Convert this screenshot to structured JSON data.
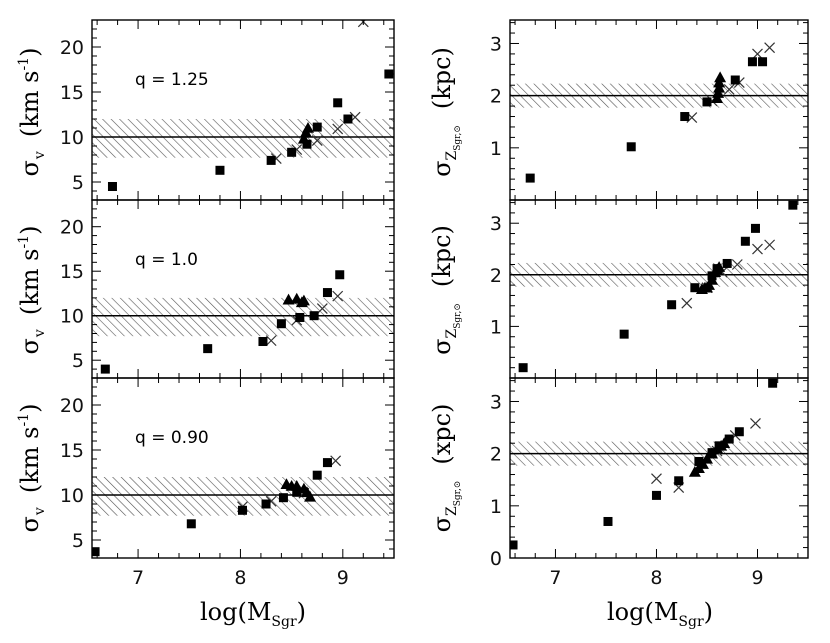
{
  "chart_data": {
    "type": "scatter",
    "xlabel_main": "log(M",
    "xlabel_sub": "Sgr",
    "xlabel_close": ")",
    "x_ticks": [
      "7",
      "8",
      "9"
    ],
    "xlim": [
      6.55,
      9.5
    ],
    "left_column": {
      "ylabel_sym": "σ",
      "ylabel_sub": "v",
      "ylabel_units": "(km s",
      "ylabel_exp": "-1",
      "ylabel_close": ")",
      "ylim": [
        3,
        23
      ],
      "y_ticks": [
        "5",
        "10",
        "15",
        "20"
      ],
      "band": {
        "center": 10,
        "low": 7.7,
        "high": 12.0
      }
    },
    "right_column": {
      "ylabel_sym": "σ",
      "ylabel_sub": "Z",
      "ylabel_subsub": "Sgr,⊙",
      "ylim": [
        0,
        3.45
      ],
      "band": {
        "center": 2.0,
        "low": 1.77,
        "high": 2.23
      },
      "panels_y_ticks": [
        [
          "1",
          "2",
          "3"
        ],
        [
          "1",
          "2",
          "3"
        ],
        [
          "0",
          "1",
          "2",
          "3"
        ]
      ],
      "panels_units": [
        "(kpc)",
        "(kpc)",
        "(xpc)"
      ]
    },
    "panels": [
      {
        "q_label": "q = 1.25",
        "left": {
          "squares": [
            [
              6.75,
              4.5
            ],
            [
              7.8,
              6.3
            ],
            [
              8.3,
              7.4
            ],
            [
              8.5,
              8.3
            ],
            [
              8.65,
              9.2
            ],
            [
              8.75,
              11.1
            ],
            [
              8.95,
              13.8
            ],
            [
              9.05,
              12.0
            ],
            [
              9.45,
              17.0
            ]
          ],
          "triangles": [
            [
              8.62,
              9.8
            ],
            [
              8.64,
              10.5
            ],
            [
              8.66,
              11.0
            ]
          ],
          "crosses": [
            [
              8.35,
              7.6
            ],
            [
              8.55,
              8.6
            ],
            [
              8.75,
              9.6
            ],
            [
              8.95,
              10.9
            ],
            [
              9.12,
              12.2
            ],
            [
              9.2,
              22.8
            ]
          ]
        },
        "right": {
          "squares": [
            [
              6.75,
              0.42
            ],
            [
              7.75,
              1.02
            ],
            [
              8.28,
              1.6
            ],
            [
              8.5,
              1.88
            ],
            [
              8.78,
              2.3
            ],
            [
              8.95,
              2.65
            ],
            [
              9.05,
              2.65
            ]
          ],
          "triangles": [
            [
              8.6,
              1.95
            ],
            [
              8.61,
              2.05
            ],
            [
              8.62,
              2.15
            ],
            [
              8.62,
              2.25
            ],
            [
              8.63,
              2.35
            ]
          ],
          "crosses": [
            [
              8.35,
              1.58
            ],
            [
              8.55,
              1.9
            ],
            [
              8.72,
              2.12
            ],
            [
              8.82,
              2.25
            ],
            [
              9.0,
              2.8
            ],
            [
              9.12,
              2.92
            ]
          ]
        }
      },
      {
        "q_label": "q = 1.0",
        "left": {
          "squares": [
            [
              6.68,
              4.0
            ],
            [
              7.68,
              6.3
            ],
            [
              8.22,
              7.1
            ],
            [
              8.4,
              9.1
            ],
            [
              8.58,
              9.8
            ],
            [
              8.72,
              10.0
            ],
            [
              8.85,
              12.6
            ],
            [
              8.97,
              14.6
            ]
          ],
          "triangles": [
            [
              8.47,
              11.8
            ],
            [
              8.55,
              11.9
            ],
            [
              8.62,
              11.7
            ],
            [
              8.6,
              11.5
            ]
          ],
          "crosses": [
            [
              8.3,
              7.2
            ],
            [
              8.55,
              9.5
            ],
            [
              8.8,
              10.8
            ],
            [
              8.95,
              12.2
            ]
          ]
        },
        "right": {
          "squares": [
            [
              6.68,
              0.2
            ],
            [
              7.68,
              0.85
            ],
            [
              8.15,
              1.42
            ],
            [
              8.38,
              1.75
            ],
            [
              8.55,
              1.98
            ],
            [
              8.6,
              2.12
            ],
            [
              8.7,
              2.22
            ],
            [
              8.88,
              2.65
            ],
            [
              8.98,
              2.9
            ],
            [
              9.35,
              3.35
            ]
          ],
          "triangles": [
            [
              8.45,
              1.72
            ],
            [
              8.48,
              1.75
            ],
            [
              8.5,
              1.75
            ],
            [
              8.52,
              1.8
            ],
            [
              8.55,
              1.9
            ],
            [
              8.58,
              2.05
            ],
            [
              8.6,
              2.1
            ],
            [
              8.62,
              2.15
            ]
          ],
          "crosses": [
            [
              8.3,
              1.45
            ],
            [
              8.5,
              1.75
            ],
            [
              8.65,
              2.05
            ],
            [
              8.8,
              2.2
            ],
            [
              9.0,
              2.5
            ],
            [
              9.12,
              2.58
            ]
          ]
        }
      },
      {
        "q_label": "q = 0.90",
        "left": {
          "squares": [
            [
              6.58,
              3.7
            ],
            [
              7.52,
              6.8
            ],
            [
              8.02,
              8.3
            ],
            [
              8.25,
              9.0
            ],
            [
              8.42,
              9.7
            ],
            [
              8.55,
              10.3
            ],
            [
              8.75,
              12.2
            ],
            [
              8.85,
              13.6
            ]
          ],
          "triangles": [
            [
              8.45,
              11.2
            ],
            [
              8.5,
              11.0
            ],
            [
              8.55,
              11.0
            ],
            [
              8.62,
              10.7
            ],
            [
              8.65,
              10.3
            ],
            [
              8.68,
              9.8
            ]
          ],
          "crosses": [
            [
              8.02,
              8.7
            ],
            [
              8.3,
              9.3
            ],
            [
              8.62,
              10.2
            ],
            [
              8.93,
              13.8
            ]
          ]
        },
        "right": {
          "squares": [
            [
              6.58,
              0.25
            ],
            [
              7.52,
              0.7
            ],
            [
              8.0,
              1.2
            ],
            [
              8.22,
              1.48
            ],
            [
              8.42,
              1.85
            ],
            [
              8.55,
              2.02
            ],
            [
              8.62,
              2.15
            ],
            [
              8.72,
              2.28
            ],
            [
              8.82,
              2.42
            ],
            [
              9.15,
              3.35
            ]
          ],
          "triangles": [
            [
              8.38,
              1.65
            ],
            [
              8.42,
              1.72
            ],
            [
              8.46,
              1.8
            ],
            [
              8.5,
              1.9
            ],
            [
              8.55,
              2.0
            ],
            [
              8.6,
              2.1
            ],
            [
              8.64,
              2.15
            ],
            [
              8.67,
              2.2
            ]
          ],
          "crosses": [
            [
              8.0,
              1.52
            ],
            [
              8.22,
              1.35
            ],
            [
              8.45,
              1.82
            ],
            [
              8.6,
              2.05
            ],
            [
              8.78,
              2.35
            ],
            [
              8.98,
              2.58
            ]
          ]
        }
      }
    ]
  }
}
